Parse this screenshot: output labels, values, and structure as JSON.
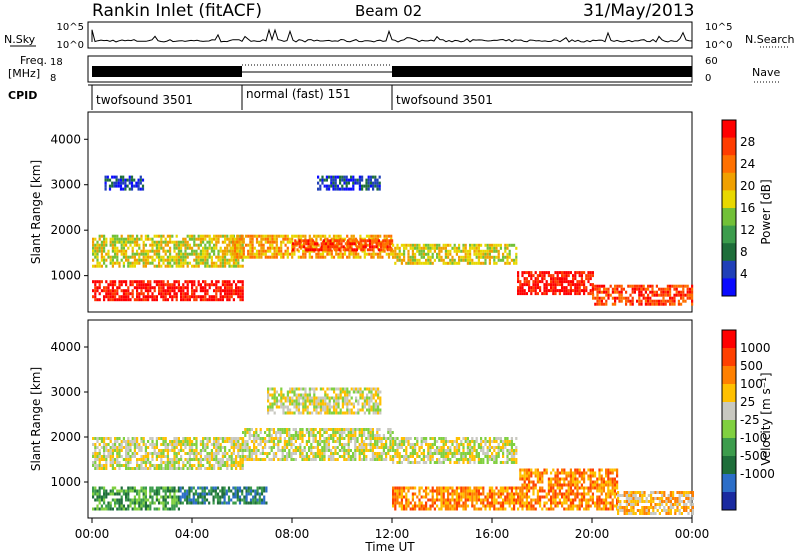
{
  "header": {
    "station": "Rankin Inlet (fitACF)",
    "beam": "Beam 02",
    "date": "31/May/2013"
  },
  "panels": {
    "nsky": {
      "left_label": "N.Sky",
      "right_label": "N.Search",
      "left_ticks": [
        "10^5",
        "10^0"
      ],
      "right_ticks": [
        "10^5",
        "10^0"
      ]
    },
    "freq": {
      "left_label_1": "Freq.",
      "left_label_2": "[MHz]",
      "left_ticks": [
        "18",
        "8"
      ],
      "right_label": "Nave",
      "right_ticks": [
        "60",
        "0"
      ]
    },
    "cpid": {
      "label": "CPID",
      "segments": [
        {
          "name": "twofsound 3501",
          "start_h": 0,
          "end_h": 6
        },
        {
          "name": "normal (fast) 151",
          "start_h": 6,
          "end_h": 12
        },
        {
          "name": "twofsound 3501",
          "start_h": 12,
          "end_h": 24
        }
      ]
    }
  },
  "chart_data": [
    {
      "type": "heatmap",
      "title": "Power",
      "ylabel": "Slant Range [km]",
      "y_ticks": [
        1000,
        2000,
        3000,
        4000
      ],
      "ylim": [
        200,
        4600
      ],
      "colorbar": {
        "label": "Power [dB]",
        "ticks": [
          "4",
          "8",
          "12",
          "16",
          "20",
          "24",
          "28"
        ],
        "colors": [
          "#0a0aff",
          "#2040b8",
          "#1e6e3a",
          "#3c9c4c",
          "#72c038",
          "#e8d800",
          "#f0a000",
          "#ff7000",
          "#ff3c00",
          "#ff0000"
        ]
      },
      "bands": [
        {
          "start_h": 0.0,
          "end_h": 6.0,
          "range_km": [
            500,
            900
          ],
          "level": 9
        },
        {
          "start_h": 0.0,
          "end_h": 6.0,
          "range_km": [
            1200,
            1900
          ],
          "level": 5
        },
        {
          "start_h": 5.5,
          "end_h": 12.0,
          "range_km": [
            1400,
            1900
          ],
          "level": 6
        },
        {
          "start_h": 8.0,
          "end_h": 12.0,
          "range_km": [
            1600,
            1800
          ],
          "level": 8
        },
        {
          "start_h": 12.0,
          "end_h": 17.0,
          "range_km": [
            1300,
            1700
          ],
          "level": 5
        },
        {
          "start_h": 17.0,
          "end_h": 20.0,
          "range_km": [
            600,
            1100
          ],
          "level": 9
        },
        {
          "start_h": 20.0,
          "end_h": 24.0,
          "range_km": [
            400,
            800
          ],
          "level": 8
        },
        {
          "start_h": 0.5,
          "end_h": 2.0,
          "range_km": [
            2900,
            3200
          ],
          "level": 1
        },
        {
          "start_h": 9.0,
          "end_h": 11.5,
          "range_km": [
            2900,
            3200
          ],
          "level": 1
        }
      ]
    },
    {
      "type": "heatmap",
      "title": "Velocity",
      "ylabel": "Slant Range [km]",
      "xlabel": "Time UT",
      "x_ticks": [
        "00:00",
        "04:00",
        "08:00",
        "12:00",
        "16:00",
        "20:00",
        "00:00"
      ],
      "y_ticks": [
        1000,
        2000,
        3000,
        4000
      ],
      "ylim": [
        200,
        4600
      ],
      "colorbar": {
        "label": "Velocity [m s⁻¹]",
        "ticks": [
          "1000",
          "500",
          "100",
          "25",
          "-25",
          "-100",
          "-500",
          "-1000"
        ],
        "colors": [
          "#1a2aa0",
          "#2c6ec8",
          "#1e6e3a",
          "#3c9c4c",
          "#80d040",
          "#c8c8c0",
          "#ffc000",
          "#ff8000",
          "#ff4000",
          "#ff0000"
        ]
      },
      "bands": [
        {
          "start_h": 0.0,
          "end_h": 6.0,
          "range_km": [
            1300,
            2000
          ],
          "level": 5
        },
        {
          "start_h": 6.0,
          "end_h": 12.0,
          "range_km": [
            1500,
            2200
          ],
          "level": 5
        },
        {
          "start_h": 12.0,
          "end_h": 17.0,
          "range_km": [
            1400,
            2000
          ],
          "level": 5
        },
        {
          "start_h": 0.0,
          "end_h": 3.5,
          "range_km": [
            400,
            900
          ],
          "level": 3
        },
        {
          "start_h": 3.5,
          "end_h": 7.0,
          "range_km": [
            500,
            900
          ],
          "level": 2
        },
        {
          "start_h": 12.0,
          "end_h": 17.0,
          "range_km": [
            400,
            900
          ],
          "level": 7
        },
        {
          "start_h": 17.0,
          "end_h": 21.0,
          "range_km": [
            400,
            1300
          ],
          "level": 7
        },
        {
          "start_h": 21.0,
          "end_h": 24.0,
          "range_km": [
            300,
            800
          ],
          "level": 6
        },
        {
          "start_h": 7.0,
          "end_h": 11.5,
          "range_km": [
            2500,
            3100
          ],
          "level": 5
        }
      ]
    }
  ]
}
